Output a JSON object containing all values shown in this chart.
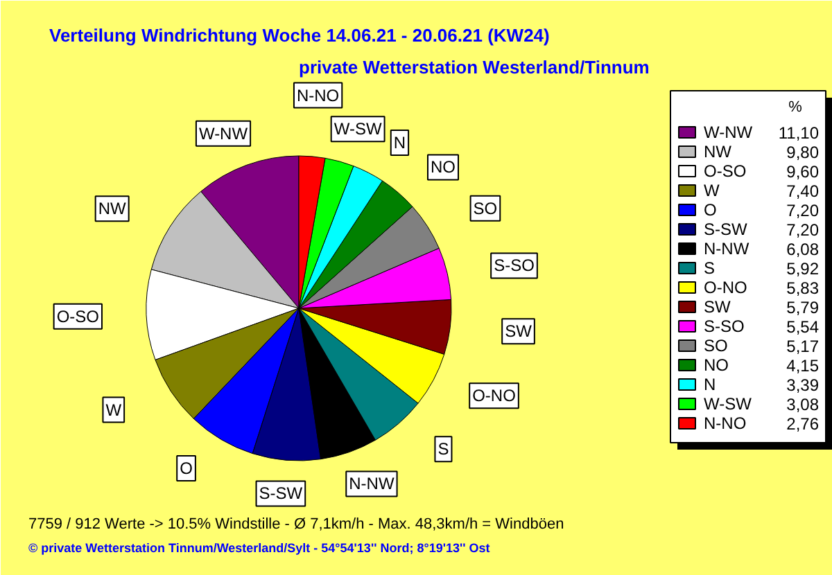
{
  "chart_data": {
    "type": "pie",
    "title": "Verteilung Windrichtung   Woche 14.06.21 - 20.06.21 (KW24)",
    "subtitle": "private Wetterstation Westerland/Tinnum",
    "categories": [
      "W-NW",
      "NW",
      "O-SO",
      "W",
      "O",
      "S-SW",
      "N-NW",
      "S",
      "O-NO",
      "SW",
      "S-SO",
      "SO",
      "NO",
      "N",
      "W-SW",
      "N-NO"
    ],
    "values": [
      11.1,
      9.8,
      9.6,
      7.4,
      7.2,
      7.2,
      6.08,
      5.92,
      5.83,
      5.79,
      5.54,
      5.17,
      4.15,
      3.39,
      3.08,
      2.76
    ],
    "colors": [
      "#800080",
      "#c0c0c0",
      "#ffffff",
      "#808000",
      "#0000ff",
      "#000080",
      "#000000",
      "#008080",
      "#ffff00",
      "#800000",
      "#ff00ff",
      "#808080",
      "#008000",
      "#00ffff",
      "#00ff00",
      "#ff0000"
    ],
    "value_labels": [
      "11,10",
      "9,80",
      "9,60",
      "7,40",
      "7,20",
      "7,20",
      "6,08",
      "5,92",
      "5,83",
      "5,79",
      "5,54",
      "5,17",
      "4,15",
      "3,39",
      "3,08",
      "2,76"
    ],
    "legend": "right",
    "legend_title": "%",
    "annotations": [
      "7759 / 912 Werte  -> 10.5% Windstille   -   Ø 7,1km/h  -  Max. 48,3km/h = Windböen",
      "© private Wetterstation Tinnum/Westerland/Sylt   -   54°54'13'' Nord; 8°19'13'' Ost"
    ]
  }
}
